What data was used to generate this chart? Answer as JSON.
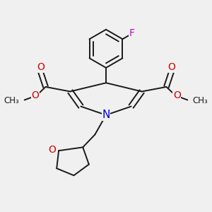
{
  "bg_color": "#f0f0f0",
  "bond_color": "#1a1a1a",
  "bond_width": 1.4,
  "atom_colors": {
    "N": "#0000cc",
    "O": "#cc0000",
    "F": "#cc00cc"
  },
  "layout": {
    "xlim": [
      0,
      1
    ],
    "ylim": [
      0,
      1
    ]
  }
}
